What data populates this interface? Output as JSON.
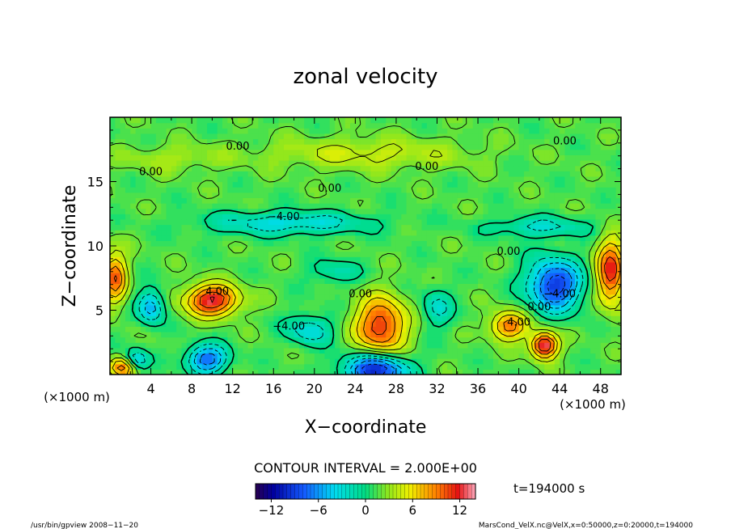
{
  "chart_data": {
    "type": "heatmap",
    "title": "zonal velocity",
    "xlabel": "X−coordinate",
    "ylabel": "Z−coordinate",
    "x_unit_left": "(×1000 m)",
    "x_unit_right": "(×1000 m)",
    "y_unit": "(×1000 m)",
    "xlim": [
      0,
      50
    ],
    "ylim": [
      0,
      20
    ],
    "x_ticks": [
      {
        "value": 4,
        "label": "4"
      },
      {
        "value": 8,
        "label": "8"
      },
      {
        "value": 12,
        "label": "12"
      },
      {
        "value": 16,
        "label": "16"
      },
      {
        "value": 20,
        "label": "20"
      },
      {
        "value": 24,
        "label": "24"
      },
      {
        "value": 28,
        "label": "28"
      },
      {
        "value": 32,
        "label": "32"
      },
      {
        "value": 36,
        "label": "36"
      },
      {
        "value": 40,
        "label": "40"
      },
      {
        "value": 44,
        "label": "44"
      },
      {
        "value": 48,
        "label": "48"
      }
    ],
    "y_ticks": [
      {
        "value": 5,
        "label": "5"
      },
      {
        "value": 10,
        "label": "10"
      },
      {
        "value": 15,
        "label": "15"
      }
    ],
    "contour_interval_text": "CONTOUR INTERVAL = 2.000E+00",
    "contour_interval": 2.0,
    "time_label": "t=194000 s",
    "colorbar": {
      "min": -14,
      "max": 14,
      "tick_values": [
        -12,
        -6,
        0,
        6,
        12
      ],
      "tick_labels": [
        "−12",
        "−6",
        "0",
        "6",
        "12"
      ]
    },
    "contour_labels": [
      {
        "text": "0.00",
        "x": 12.5,
        "z": 17.5
      },
      {
        "text": "0.00",
        "x": 4.0,
        "z": 15.5
      },
      {
        "text": "0.00",
        "x": 31.0,
        "z": 15.9
      },
      {
        "text": "0.00",
        "x": 21.5,
        "z": 14.2
      },
      {
        "text": "0.00",
        "x": 44.5,
        "z": 17.9
      },
      {
        "text": "0.00",
        "x": 39.0,
        "z": 9.3
      },
      {
        "text": "−4.00",
        "x": 17.0,
        "z": 12.0
      },
      {
        "text": "−4.00",
        "x": 17.5,
        "z": 3.5
      },
      {
        "text": "−4.00",
        "x": 44.0,
        "z": 6.0
      },
      {
        "text": "4.00",
        "x": 10.5,
        "z": 6.2
      },
      {
        "text": "4.00",
        "x": 40.0,
        "z": 3.8
      },
      {
        "text": "0.00",
        "x": 24.5,
        "z": 6.0
      },
      {
        "text": "0.00",
        "x": 42.0,
        "z": 5.0
      }
    ],
    "features": [
      {
        "x": 10.0,
        "z": 5.8,
        "u": 11,
        "sx": 2.6,
        "sz": 1.2
      },
      {
        "x": 26.5,
        "z": 3.8,
        "u": 10,
        "sx": 2.4,
        "sz": 2.2
      },
      {
        "x": 42.5,
        "z": 2.3,
        "u": 12,
        "sx": 1.3,
        "sz": 1.0
      },
      {
        "x": 39.0,
        "z": 3.8,
        "u": 8,
        "sx": 1.8,
        "sz": 1.1
      },
      {
        "x": 49.0,
        "z": 8.0,
        "u": 10,
        "sx": 1.4,
        "sz": 2.5
      },
      {
        "x": 0.5,
        "z": 7.5,
        "u": 8,
        "sx": 1.2,
        "sz": 2.0
      },
      {
        "x": 1.5,
        "z": 0.6,
        "u": 9,
        "sx": 1.5,
        "sz": 0.8
      },
      {
        "x": 26.0,
        "z": 0.4,
        "u": -12,
        "sx": 3.0,
        "sz": 1.2
      },
      {
        "x": 9.5,
        "z": 1.2,
        "u": -9,
        "sx": 2.0,
        "sz": 1.1
      },
      {
        "x": 4.0,
        "z": 5.3,
        "u": -7,
        "sx": 1.3,
        "sz": 1.3
      },
      {
        "x": 43.5,
        "z": 7.0,
        "u": -11,
        "sx": 2.6,
        "sz": 2.0
      },
      {
        "x": 17.5,
        "z": 11.8,
        "u": -5,
        "sx": 8.0,
        "sz": 0.9
      },
      {
        "x": 42.0,
        "z": 11.5,
        "u": -4,
        "sx": 5.0,
        "sz": 0.8
      },
      {
        "x": 19.5,
        "z": 3.5,
        "u": -5,
        "sx": 2.2,
        "sz": 1.2
      },
      {
        "x": 32.0,
        "z": 5.2,
        "u": -4,
        "sx": 1.5,
        "sz": 1.5
      },
      {
        "x": 22.0,
        "z": 8.0,
        "u": -3,
        "sx": 2.5,
        "sz": 1.0
      },
      {
        "x": 25.0,
        "z": 17.2,
        "u": 3,
        "sx": 10.0,
        "sz": 1.2
      },
      {
        "x": 6.0,
        "z": 16.8,
        "u": 2,
        "sx": 5.0,
        "sz": 1.0
      },
      {
        "x": 2.5,
        "z": 1.0,
        "u": -8,
        "sx": 1.2,
        "sz": 0.9
      }
    ]
  },
  "footer": {
    "left": "/usr/bin/gpview   2008−11−20",
    "right": "MarsCond_VelX.nc@VelX,x=0:50000,z=0:20000,t=194000"
  }
}
